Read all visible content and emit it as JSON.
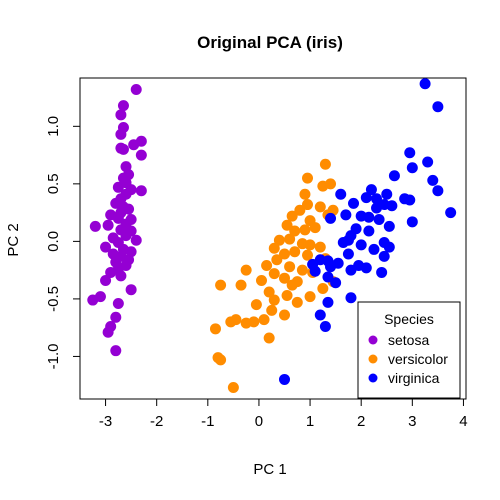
{
  "chart_data": {
    "type": "scatter",
    "title": "Original PCA (iris)",
    "xlabel": "PC 1",
    "ylabel": "PC 2",
    "xlim": [
      -3.5,
      4.05
    ],
    "ylim": [
      -1.37,
      1.42
    ],
    "xticks": [
      -3,
      -2,
      -1,
      0,
      1,
      2,
      3,
      4
    ],
    "yticks": [
      -1.0,
      -0.5,
      0.0,
      0.5,
      1.0
    ],
    "ytick_labels": [
      "-1.0",
      "-0.5",
      "0.0",
      "0.5",
      "1.0"
    ],
    "grid": false,
    "legend": {
      "title": "Species",
      "position": "bottom-right"
    },
    "series": [
      {
        "name": "setosa",
        "color": "#9400D3",
        "points": [
          [
            -2.4,
            1.32
          ],
          [
            -2.65,
            1.18
          ],
          [
            -2.7,
            1.1
          ],
          [
            -2.65,
            0.99
          ],
          [
            -2.7,
            0.93
          ],
          [
            -2.3,
            0.87
          ],
          [
            -2.45,
            0.84
          ],
          [
            -2.7,
            0.81
          ],
          [
            -2.65,
            0.8
          ],
          [
            -2.3,
            0.75
          ],
          [
            -2.6,
            0.65
          ],
          [
            -2.55,
            0.58
          ],
          [
            -2.65,
            0.55
          ],
          [
            -2.6,
            0.51
          ],
          [
            -2.75,
            0.47
          ],
          [
            -2.5,
            0.45
          ],
          [
            -2.3,
            0.44
          ],
          [
            -2.6,
            0.41
          ],
          [
            -2.7,
            0.37
          ],
          [
            -2.8,
            0.33
          ],
          [
            -2.65,
            0.3
          ],
          [
            -2.55,
            0.28
          ],
          [
            -2.7,
            0.25
          ],
          [
            -2.9,
            0.23
          ],
          [
            -2.75,
            0.2
          ],
          [
            -2.5,
            0.19
          ],
          [
            -2.6,
            0.15
          ],
          [
            -2.95,
            0.14
          ],
          [
            -3.2,
            0.13
          ],
          [
            -2.7,
            0.1
          ],
          [
            -2.5,
            0.09
          ],
          [
            -2.6,
            0.05
          ],
          [
            -2.85,
            0.03
          ],
          [
            -2.4,
            0.01
          ],
          [
            -2.75,
            -0.01
          ],
          [
            -3.0,
            -0.05
          ],
          [
            -2.65,
            -0.07
          ],
          [
            -2.5,
            -0.09
          ],
          [
            -2.85,
            -0.11
          ],
          [
            -2.7,
            -0.13
          ],
          [
            -2.55,
            -0.16
          ],
          [
            -2.8,
            -0.18
          ],
          [
            -2.6,
            -0.21
          ],
          [
            -2.75,
            -0.24
          ],
          [
            -2.9,
            -0.27
          ],
          [
            -2.7,
            -0.3
          ],
          [
            -3.0,
            -0.34
          ],
          [
            -2.5,
            -0.42
          ],
          [
            -3.1,
            -0.48
          ],
          [
            -3.25,
            -0.51
          ],
          [
            -2.75,
            -0.54
          ],
          [
            -2.8,
            -0.66
          ],
          [
            -2.9,
            -0.74
          ],
          [
            -2.95,
            -0.79
          ],
          [
            -2.8,
            -0.95
          ]
        ]
      },
      {
        "name": "versicolor",
        "color": "#FF8C00",
        "points": [
          [
            1.3,
            0.67
          ],
          [
            0.95,
            0.55
          ],
          [
            1.4,
            0.5
          ],
          [
            1.25,
            0.48
          ],
          [
            0.9,
            0.41
          ],
          [
            0.95,
            0.32
          ],
          [
            1.2,
            0.3
          ],
          [
            0.8,
            0.27
          ],
          [
            1.45,
            0.27
          ],
          [
            1.35,
            0.23
          ],
          [
            0.65,
            0.22
          ],
          [
            1.0,
            0.18
          ],
          [
            0.55,
            0.14
          ],
          [
            1.1,
            0.12
          ],
          [
            0.9,
            0.1
          ],
          [
            0.7,
            0.09
          ],
          [
            0.6,
            0.02
          ],
          [
            0.4,
            0.01
          ],
          [
            0.85,
            -0.02
          ],
          [
            1.0,
            -0.03
          ],
          [
            1.2,
            -0.05
          ],
          [
            0.3,
            -0.06
          ],
          [
            0.7,
            -0.09
          ],
          [
            0.5,
            -0.11
          ],
          [
            0.95,
            -0.12
          ],
          [
            1.3,
            -0.15
          ],
          [
            0.35,
            -0.16
          ],
          [
            0.15,
            -0.21
          ],
          [
            0.6,
            -0.22
          ],
          [
            0.85,
            -0.25
          ],
          [
            1.05,
            -0.27
          ],
          [
            0.3,
            -0.28
          ],
          [
            -0.25,
            -0.25
          ],
          [
            0.5,
            -0.32
          ],
          [
            0.05,
            -0.34
          ],
          [
            0.75,
            -0.35
          ],
          [
            1.45,
            -0.35
          ],
          [
            -0.35,
            -0.38
          ],
          [
            0.65,
            -0.38
          ],
          [
            -0.75,
            -0.38
          ],
          [
            1.25,
            -0.41
          ],
          [
            0.2,
            -0.44
          ],
          [
            0.55,
            -0.47
          ],
          [
            1.0,
            -0.48
          ],
          [
            0.3,
            -0.51
          ],
          [
            0.75,
            -0.53
          ],
          [
            -0.05,
            -0.55
          ],
          [
            0.25,
            -0.6
          ],
          [
            0.5,
            -0.64
          ],
          [
            0.1,
            -0.68
          ],
          [
            -0.45,
            -0.68
          ],
          [
            -0.1,
            -0.7
          ],
          [
            -0.25,
            -0.71
          ],
          [
            -0.55,
            -0.7
          ],
          [
            0.2,
            -0.84
          ],
          [
            -0.85,
            -0.76
          ],
          [
            -0.8,
            -1.01
          ],
          [
            -0.75,
            -1.03
          ],
          [
            -0.5,
            -1.27
          ]
        ]
      },
      {
        "name": "virginica",
        "color": "#0000FF",
        "points": [
          [
            3.25,
            1.37
          ],
          [
            3.5,
            1.17
          ],
          [
            2.95,
            0.77
          ],
          [
            3.3,
            0.69
          ],
          [
            3.0,
            0.64
          ],
          [
            2.65,
            0.57
          ],
          [
            3.4,
            0.53
          ],
          [
            2.2,
            0.45
          ],
          [
            3.5,
            0.44
          ],
          [
            2.5,
            0.41
          ],
          [
            1.6,
            0.41
          ],
          [
            2.1,
            0.38
          ],
          [
            2.3,
            0.37
          ],
          [
            2.85,
            0.37
          ],
          [
            2.95,
            0.36
          ],
          [
            1.85,
            0.33
          ],
          [
            2.45,
            0.32
          ],
          [
            2.6,
            0.31
          ],
          [
            2.3,
            0.29
          ],
          [
            3.75,
            0.25
          ],
          [
            1.7,
            0.23
          ],
          [
            2.0,
            0.22
          ],
          [
            2.15,
            0.21
          ],
          [
            1.4,
            0.2
          ],
          [
            2.35,
            0.19
          ],
          [
            3.0,
            0.17
          ],
          [
            2.55,
            0.13
          ],
          [
            1.9,
            0.11
          ],
          [
            2.15,
            0.09
          ],
          [
            1.8,
            0.05
          ],
          [
            1.75,
            0.01
          ],
          [
            1.65,
            -0.01
          ],
          [
            2.45,
            -0.01
          ],
          [
            2.0,
            -0.03
          ],
          [
            2.55,
            -0.05
          ],
          [
            2.25,
            -0.07
          ],
          [
            1.75,
            -0.11
          ],
          [
            2.45,
            -0.13
          ],
          [
            1.2,
            -0.16
          ],
          [
            1.35,
            -0.17
          ],
          [
            1.55,
            -0.19
          ],
          [
            1.05,
            -0.2
          ],
          [
            1.4,
            -0.22
          ],
          [
            1.95,
            -0.21
          ],
          [
            2.1,
            -0.23
          ],
          [
            1.8,
            -0.25
          ],
          [
            2.4,
            -0.27
          ],
          [
            1.1,
            -0.26
          ],
          [
            1.35,
            -0.31
          ],
          [
            1.5,
            -0.36
          ],
          [
            1.8,
            -0.49
          ],
          [
            1.2,
            -0.64
          ],
          [
            1.3,
            -0.74
          ],
          [
            1.35,
            -0.53
          ],
          [
            0.5,
            -1.2
          ]
        ]
      }
    ]
  }
}
